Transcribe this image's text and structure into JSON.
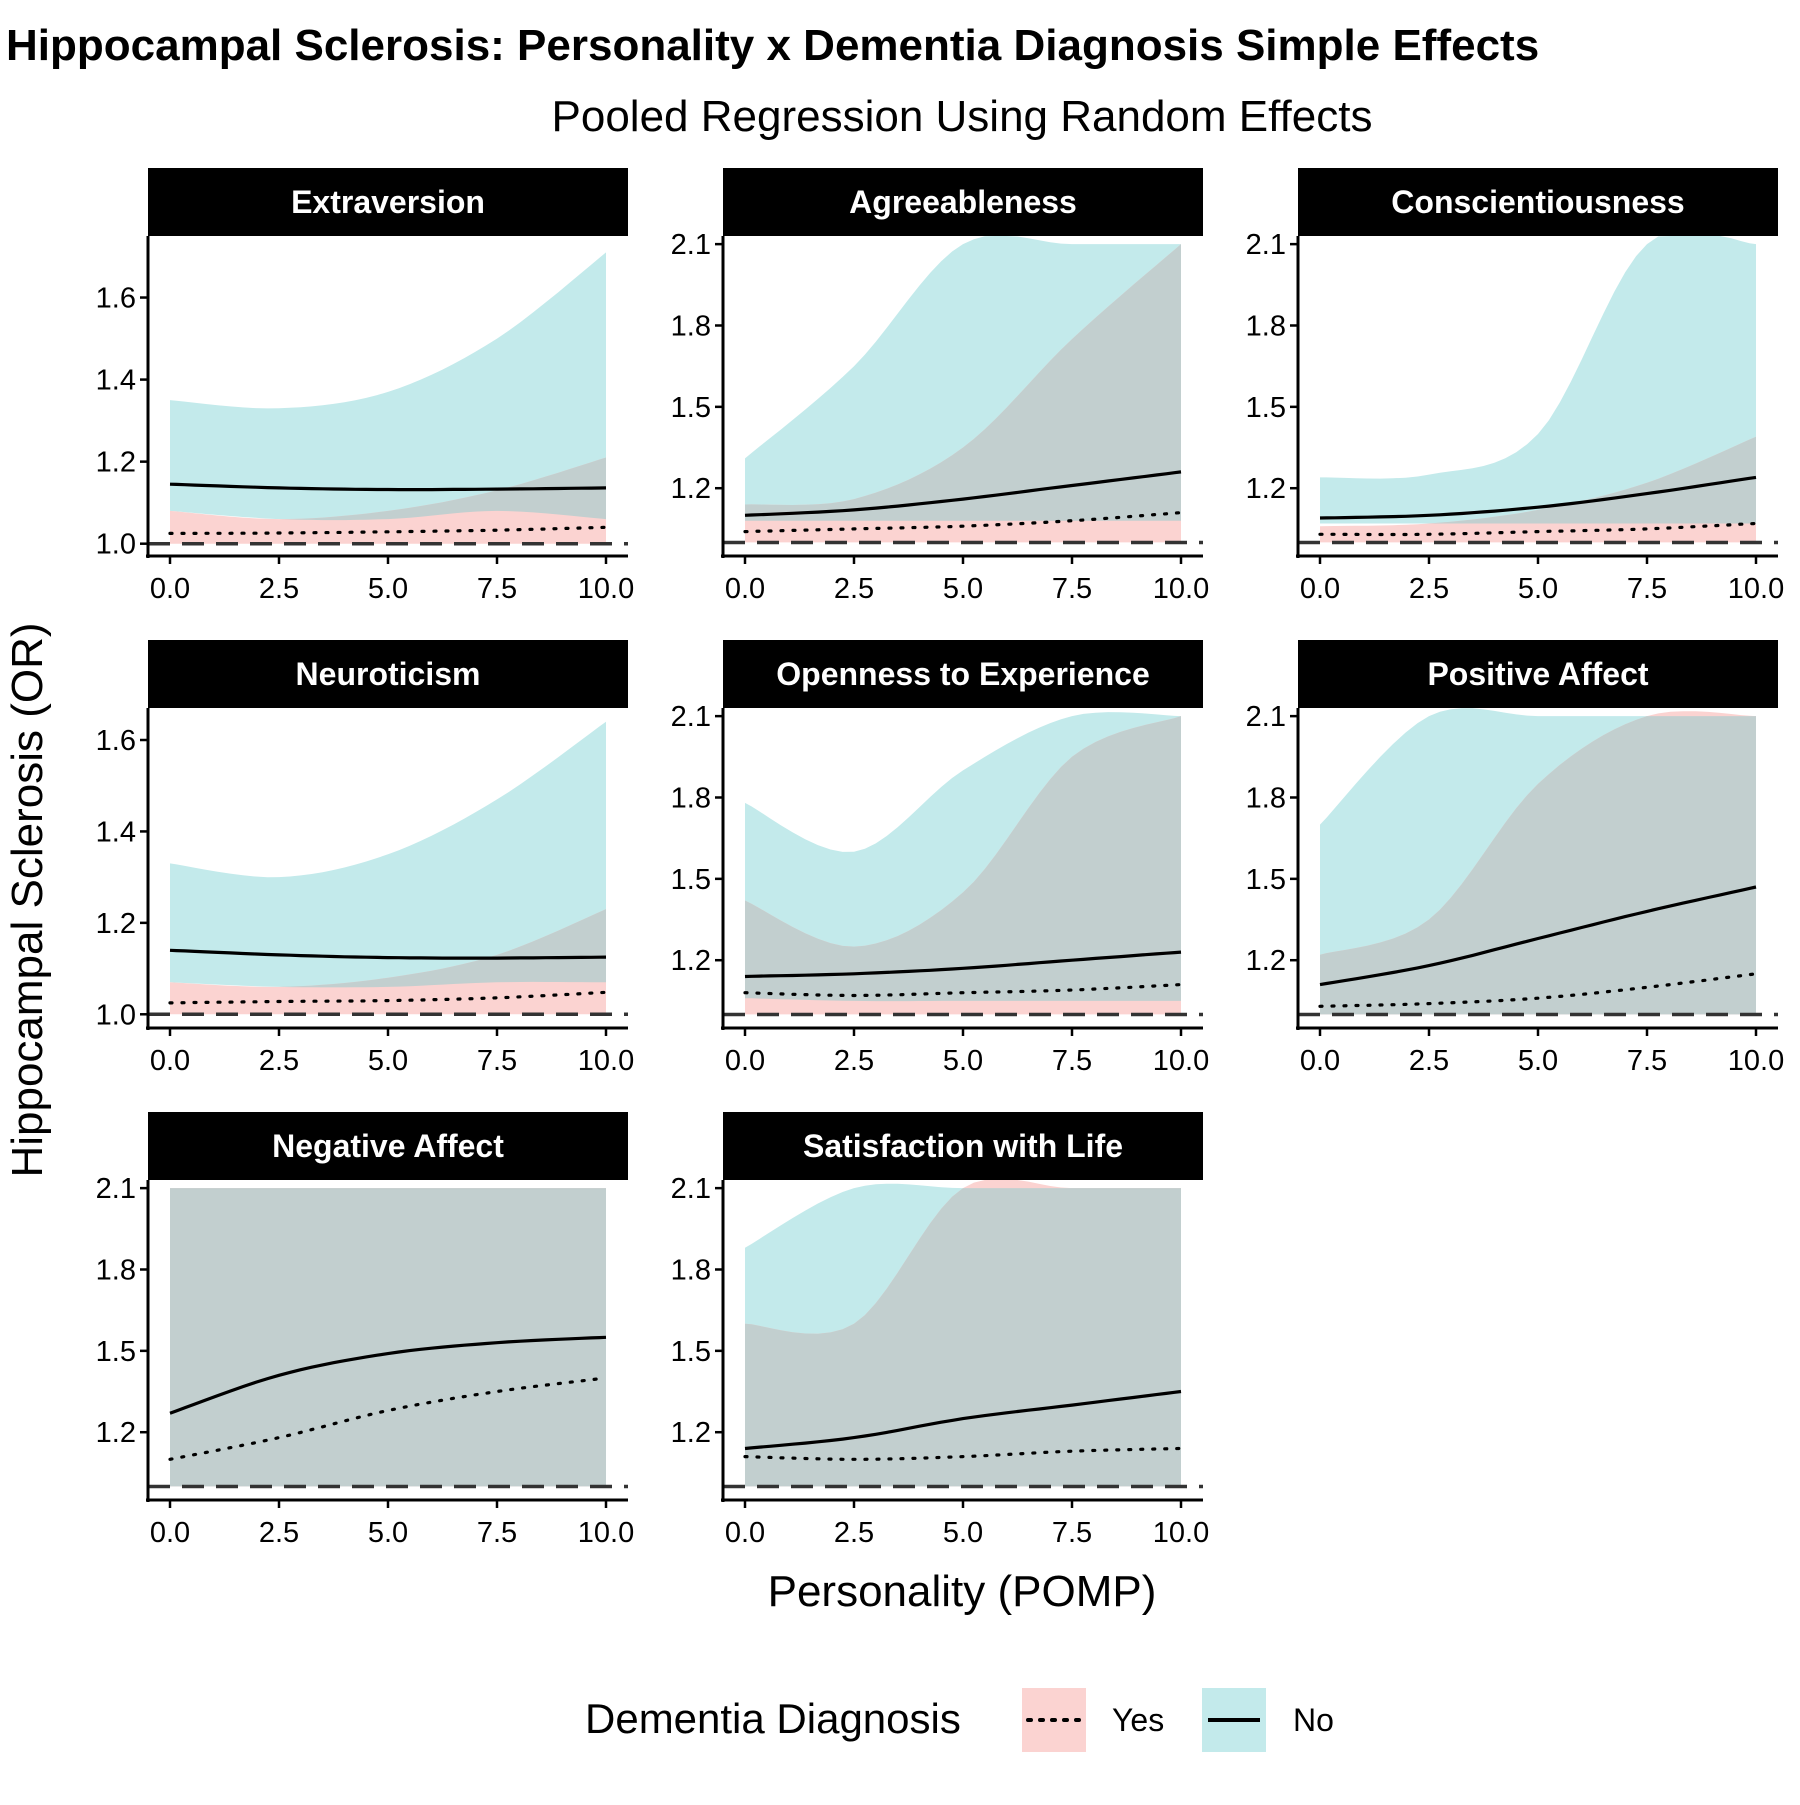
{
  "chart_data": {
    "type": "area",
    "title": "Hippocampal Sclerosis: Personality x Dementia Diagnosis Simple Effects",
    "subtitle": "Pooled Regression Using Random Effects",
    "xlabel": "Personality (POMP)",
    "ylabel": "Hippocampal Sclerosis (OR)",
    "reference_line": 1.0,
    "legend": {
      "title": "Dementia Diagnosis",
      "placement": "bottom",
      "items": [
        {
          "label": "Yes",
          "linetype": "dotted",
          "fill": "#F8766D"
        },
        {
          "label": "No",
          "linetype": "solid",
          "fill": "#00BFC4"
        }
      ]
    },
    "colors": {
      "yes_ribbon": "#fbd3d1",
      "no_ribbon": "#c3eaeb",
      "overlap": "#c2cfcf",
      "strip": "#000000"
    },
    "x": [
      0,
      2.5,
      5,
      7.5,
      10
    ],
    "panels": [
      {
        "name": "Extraversion",
        "ylim": [
          0.97,
          1.75
        ],
        "yticks": [
          1.0,
          1.2,
          1.4,
          1.6
        ],
        "ytick_labels": [
          "1.0",
          "1.2",
          "1.4",
          "1.6"
        ],
        "xtick_labels": [
          "0.0",
          "2.5",
          "5.0",
          "7.5",
          "10.0"
        ],
        "series": [
          {
            "name": "No",
            "estimate": [
              1.145,
              1.136,
              1.132,
              1.133,
              1.136
            ],
            "lower": [
              1.08,
              1.06,
              1.06,
              1.08,
              1.06
            ],
            "upper": [
              1.35,
              1.33,
              1.37,
              1.5,
              1.71
            ]
          },
          {
            "name": "Yes",
            "estimate": [
              1.025,
              1.026,
              1.029,
              1.033,
              1.04
            ],
            "lower": [
              1.0,
              1.0,
              1.0,
              1.0,
              1.0
            ],
            "upper": [
              1.08,
              1.06,
              1.08,
              1.13,
              1.21
            ]
          }
        ]
      },
      {
        "name": "Agreeableness",
        "ylim": [
          0.95,
          2.13
        ],
        "yticks": [
          1.2,
          1.5,
          1.8,
          2.1
        ],
        "ytick_labels": [
          "1.2",
          "1.5",
          "1.8",
          "2.1"
        ],
        "xtick_labels": [
          "0.0",
          "2.5",
          "5.0",
          "7.5",
          "10.0"
        ],
        "series": [
          {
            "name": "No",
            "estimate": [
              1.1,
              1.12,
              1.16,
              1.21,
              1.26
            ],
            "lower": [
              1.08,
              1.08,
              1.08,
              1.08,
              1.08
            ],
            "upper": [
              1.31,
              1.65,
              2.1,
              2.1,
              2.1
            ]
          },
          {
            "name": "Yes",
            "estimate": [
              1.04,
              1.05,
              1.06,
              1.08,
              1.11
            ],
            "lower": [
              1.0,
              1.0,
              1.0,
              1.0,
              1.0
            ],
            "upper": [
              1.14,
              1.16,
              1.35,
              1.75,
              2.1
            ]
          }
        ]
      },
      {
        "name": "Conscientiousness",
        "ylim": [
          0.95,
          2.13
        ],
        "yticks": [
          1.2,
          1.5,
          1.8,
          2.1
        ],
        "ytick_labels": [
          "1.2",
          "1.5",
          "1.8",
          "2.1"
        ],
        "xtick_labels": [
          "0.0",
          "2.5",
          "5.0",
          "7.5",
          "10.0"
        ],
        "series": [
          {
            "name": "No",
            "estimate": [
              1.09,
              1.1,
              1.13,
              1.18,
              1.24
            ],
            "lower": [
              1.07,
              1.07,
              1.07,
              1.07,
              1.07
            ],
            "upper": [
              1.24,
              1.25,
              1.4,
              2.1,
              2.1
            ]
          },
          {
            "name": "Yes",
            "estimate": [
              1.03,
              1.03,
              1.04,
              1.05,
              1.07
            ],
            "lower": [
              1.0,
              1.0,
              1.0,
              1.0,
              1.0
            ],
            "upper": [
              1.06,
              1.07,
              1.12,
              1.22,
              1.39
            ]
          }
        ]
      },
      {
        "name": "Neuroticism",
        "ylim": [
          0.97,
          1.67
        ],
        "yticks": [
          1.0,
          1.2,
          1.4,
          1.6
        ],
        "ytick_labels": [
          "1.0",
          "1.2",
          "1.4",
          "1.6"
        ],
        "xtick_labels": [
          "0.0",
          "2.5",
          "5.0",
          "7.5",
          "10.0"
        ],
        "series": [
          {
            "name": "No",
            "estimate": [
              1.14,
              1.13,
              1.124,
              1.123,
              1.125
            ],
            "lower": [
              1.07,
              1.06,
              1.06,
              1.07,
              1.07
            ],
            "upper": [
              1.33,
              1.3,
              1.35,
              1.47,
              1.64
            ]
          },
          {
            "name": "Yes",
            "estimate": [
              1.025,
              1.028,
              1.03,
              1.036,
              1.048
            ],
            "lower": [
              1.0,
              1.0,
              1.0,
              1.0,
              1.0
            ],
            "upper": [
              1.07,
              1.06,
              1.08,
              1.13,
              1.23
            ]
          }
        ]
      },
      {
        "name": "Openness to Experience",
        "ylim": [
          0.95,
          2.13
        ],
        "yticks": [
          1.2,
          1.5,
          1.8,
          2.1
        ],
        "ytick_labels": [
          "1.2",
          "1.5",
          "1.8",
          "2.1"
        ],
        "xtick_labels": [
          "0.0",
          "2.5",
          "5.0",
          "7.5",
          "10.0"
        ],
        "series": [
          {
            "name": "No",
            "estimate": [
              1.14,
              1.15,
              1.17,
              1.2,
              1.23
            ],
            "lower": [
              1.06,
              1.05,
              1.05,
              1.05,
              1.05
            ],
            "upper": [
              1.78,
              1.6,
              1.9,
              2.1,
              2.1
            ]
          },
          {
            "name": "Yes",
            "estimate": [
              1.08,
              1.07,
              1.08,
              1.09,
              1.11
            ],
            "lower": [
              1.0,
              1.0,
              1.0,
              1.0,
              1.0
            ],
            "upper": [
              1.42,
              1.25,
              1.45,
              1.95,
              2.1
            ]
          }
        ]
      },
      {
        "name": "Positive Affect",
        "ylim": [
          0.95,
          2.13
        ],
        "yticks": [
          1.2,
          1.5,
          1.8,
          2.1
        ],
        "ytick_labels": [
          "1.2",
          "1.5",
          "1.8",
          "2.1"
        ],
        "xtick_labels": [
          "0.0",
          "2.5",
          "5.0",
          "7.5",
          "10.0"
        ],
        "series": [
          {
            "name": "No",
            "estimate": [
              1.11,
              1.18,
              1.28,
              1.38,
              1.47
            ],
            "lower": [
              1.0,
              1.0,
              1.0,
              1.0,
              1.0
            ],
            "upper": [
              1.7,
              2.1,
              2.1,
              2.1,
              2.1
            ]
          },
          {
            "name": "Yes",
            "estimate": [
              1.03,
              1.04,
              1.06,
              1.1,
              1.15
            ],
            "lower": [
              1.0,
              1.0,
              1.0,
              1.0,
              1.0
            ],
            "upper": [
              1.22,
              1.35,
              1.85,
              2.1,
              2.1
            ]
          }
        ]
      },
      {
        "name": "Negative Affect",
        "ylim": [
          0.95,
          2.13
        ],
        "yticks": [
          1.2,
          1.5,
          1.8,
          2.1
        ],
        "ytick_labels": [
          "1.2",
          "1.5",
          "1.8",
          "2.1"
        ],
        "xtick_labels": [
          "0.0",
          "2.5",
          "5.0",
          "7.5",
          "10.0"
        ],
        "series": [
          {
            "name": "No",
            "estimate": [
              1.27,
              1.41,
              1.49,
              1.53,
              1.55
            ],
            "lower": [
              1.0,
              1.0,
              1.0,
              1.0,
              1.0
            ],
            "upper": [
              2.1,
              2.1,
              2.1,
              2.1,
              2.1
            ]
          },
          {
            "name": "Yes",
            "estimate": [
              1.1,
              1.18,
              1.28,
              1.35,
              1.4
            ],
            "lower": [
              1.0,
              1.0,
              1.0,
              1.0,
              1.0
            ],
            "upper": [
              2.1,
              2.1,
              2.1,
              2.1,
              2.1
            ]
          }
        ]
      },
      {
        "name": "Satisfaction with Life",
        "ylim": [
          0.95,
          2.13
        ],
        "yticks": [
          1.2,
          1.5,
          1.8,
          2.1
        ],
        "ytick_labels": [
          "1.2",
          "1.5",
          "1.8",
          "2.1"
        ],
        "xtick_labels": [
          "0.0",
          "2.5",
          "5.0",
          "7.5",
          "10.0"
        ],
        "series": [
          {
            "name": "No",
            "estimate": [
              1.14,
              1.18,
              1.25,
              1.3,
              1.35
            ],
            "lower": [
              1.0,
              1.0,
              1.0,
              1.0,
              1.0
            ],
            "upper": [
              1.88,
              2.1,
              2.1,
              2.1,
              2.1
            ]
          },
          {
            "name": "Yes",
            "estimate": [
              1.11,
              1.1,
              1.11,
              1.13,
              1.14
            ],
            "lower": [
              1.0,
              1.0,
              1.0,
              1.0,
              1.0
            ],
            "upper": [
              1.6,
              1.6,
              2.1,
              2.1,
              2.1
            ]
          }
        ]
      }
    ]
  }
}
